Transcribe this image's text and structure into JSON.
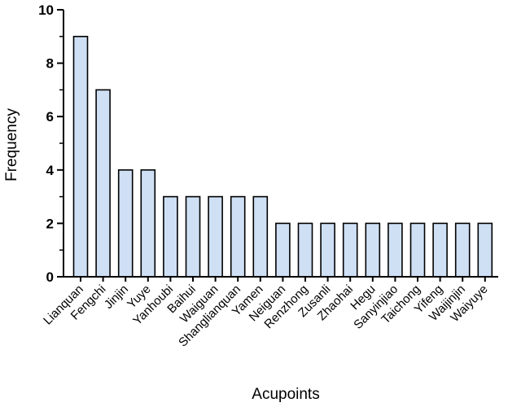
{
  "chart_data": {
    "type": "bar",
    "categories": [
      "Lianquan",
      "Fengchi",
      "Jinjin",
      "Yuye",
      "Yanhoubi",
      "Baihui",
      "Waiguan",
      "Shanglianquan",
      "Yamen",
      "Neiguan",
      "Renzhong",
      "Zusanli",
      "Zhaohai",
      "Hegu",
      "Sanyinjiao",
      "Taichong",
      "Yifeng",
      "Waijinjin",
      "Waiyuye"
    ],
    "values": [
      9,
      7,
      4,
      4,
      3,
      3,
      3,
      3,
      3,
      2,
      2,
      2,
      2,
      2,
      2,
      2,
      2,
      2,
      2
    ],
    "title": "",
    "xlabel": "Acupoints",
    "ylabel": "Frequency",
    "ylim": [
      0,
      10
    ],
    "yticks": [
      "0",
      "2",
      "4",
      "6",
      "8",
      "10"
    ],
    "grid": false,
    "colors": {
      "bar_fill": "#cfe0f5",
      "bar_stroke": "#000000"
    }
  }
}
